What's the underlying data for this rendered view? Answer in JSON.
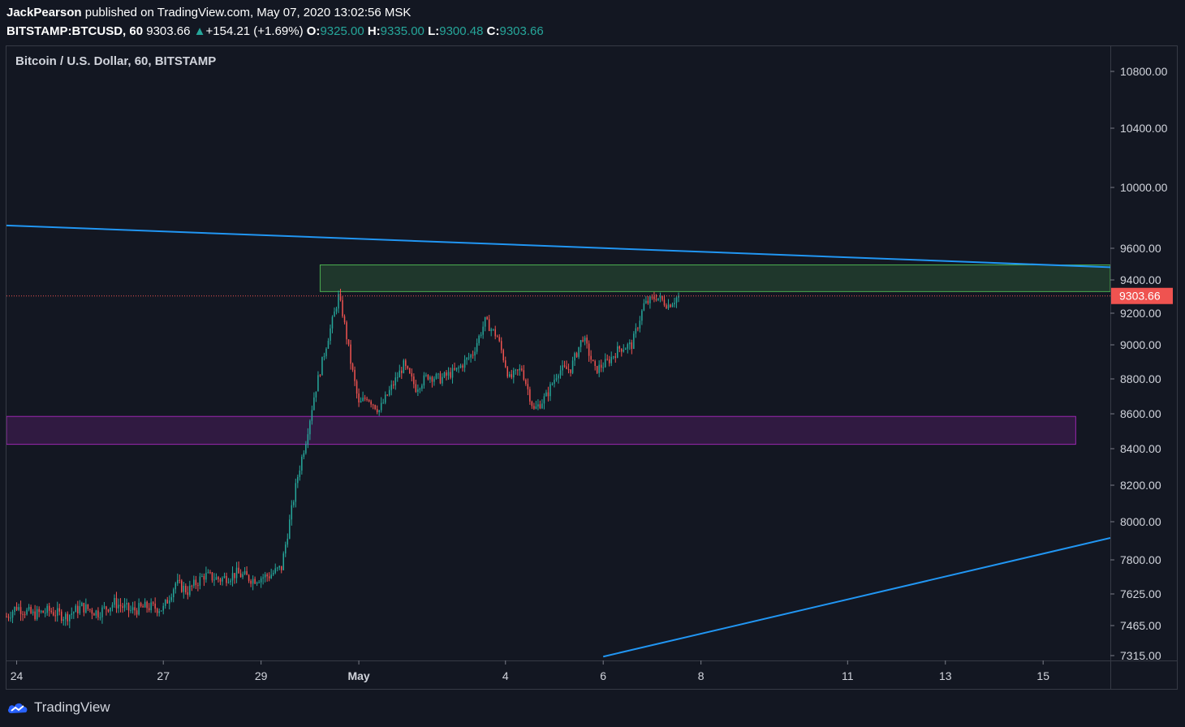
{
  "header": {
    "author": "JackPearson",
    "published": "published on TradingView.com, May 07, 2020 13:02:56 MSK",
    "symbol": "BITSTAMP:BTCUSD, 60",
    "last": "9303.66",
    "arrow": "▲",
    "change": "+154.21 (+1.69%)",
    "o_label": "O:",
    "o_value": "9325.00",
    "h_label": "H:",
    "h_value": "9335.00",
    "l_label": "L:",
    "l_value": "9300.48",
    "c_label": "C:",
    "c_value": "9303.66"
  },
  "chart_title": "Bitcoin / U.S. Dollar, 60, BITSTAMP",
  "footer": {
    "brand": "TradingView"
  },
  "colors": {
    "up": "#26a69a",
    "down": "#ef5350",
    "trendline": "#2196f3",
    "resistance_zone": "#4caf50",
    "support_zone": "#9c27b0",
    "price_label": "#ef5350"
  },
  "chart_data": {
    "type": "candlestick",
    "title": "Bitcoin / U.S. Dollar, 60, BITSTAMP",
    "y_ticks": [
      10800,
      10400,
      10000,
      9600,
      9400,
      9200,
      9000,
      8800,
      8600,
      8400,
      8200,
      8000,
      7800,
      7625,
      7465,
      7315
    ],
    "y_tick_labels": [
      "10800.00",
      "10400.00",
      "10000.00",
      "9600.00",
      "9400.00",
      "9200.00",
      "9000.00",
      "8800.00",
      "8600.00",
      "8400.00",
      "8200.00",
      "8000.00",
      "7800.00",
      "7625.00",
      "7465.00",
      "7315.00"
    ],
    "y_range": [
      7315,
      10950
    ],
    "x_range_days": [
      "2020-04-23T19:00",
      "2020-05-16T09:00"
    ],
    "x_ticks": [
      {
        "label": "24",
        "date": "2020-04-24"
      },
      {
        "label": "27",
        "date": "2020-04-27"
      },
      {
        "label": "29",
        "date": "2020-04-29"
      },
      {
        "label": "May",
        "date": "2020-05-01"
      },
      {
        "label": "4",
        "date": "2020-05-04"
      },
      {
        "label": "6",
        "date": "2020-05-06"
      },
      {
        "label": "8",
        "date": "2020-05-08"
      },
      {
        "label": "11",
        "date": "2020-05-11"
      },
      {
        "label": "13",
        "date": "2020-05-13"
      },
      {
        "label": "15",
        "date": "2020-05-15"
      }
    ],
    "last_price": 9303.66,
    "last_price_label": "9303.66",
    "zones": [
      {
        "name": "resistance",
        "from": "2020-04-30T05:00",
        "to": "2020-05-16T09:00",
        "low": 9330,
        "high": 9495
      },
      {
        "name": "support",
        "from": "2020-04-23T19:00",
        "to": "2020-05-15T16:00",
        "low": 8425,
        "high": 8585
      }
    ],
    "trendlines": [
      {
        "name": "descending",
        "from": {
          "date": "2020-04-23T19:00",
          "price": 9750
        },
        "to": {
          "date": "2020-05-16T09:00",
          "price": 9480
        }
      },
      {
        "name": "ascending",
        "from": {
          "date": "2020-05-06T00:00",
          "price": 7310
        },
        "to": {
          "date": "2020-05-16T09:00",
          "price": 7915
        }
      }
    ],
    "series_close": [
      [
        "2020-04-23T19:00",
        7510
      ],
      [
        "2020-04-24T00:00",
        7560
      ],
      [
        "2020-04-24T08:00",
        7520
      ],
      [
        "2020-04-24T16:00",
        7540
      ],
      [
        "2020-04-25T00:00",
        7510
      ],
      [
        "2020-04-25T08:00",
        7560
      ],
      [
        "2020-04-25T16:00",
        7530
      ],
      [
        "2020-04-26T00:00",
        7580
      ],
      [
        "2020-04-26T08:00",
        7540
      ],
      [
        "2020-04-26T16:00",
        7560
      ],
      [
        "2020-04-27T00:00",
        7550
      ],
      [
        "2020-04-27T06:00",
        7680
      ],
      [
        "2020-04-27T12:00",
        7640
      ],
      [
        "2020-04-27T20:00",
        7720
      ],
      [
        "2020-04-28T04:00",
        7700
      ],
      [
        "2020-04-28T12:00",
        7730
      ],
      [
        "2020-04-28T20:00",
        7700
      ],
      [
        "2020-04-29T04:00",
        7720
      ],
      [
        "2020-04-29T10:00",
        7760
      ],
      [
        "2020-04-29T14:00",
        8000
      ],
      [
        "2020-04-29T18:00",
        8250
      ],
      [
        "2020-04-29T22:00",
        8450
      ],
      [
        "2020-04-30T02:00",
        8700
      ],
      [
        "2020-04-30T06:00",
        8900
      ],
      [
        "2020-04-30T10:00",
        9100
      ],
      [
        "2020-04-30T14:00",
        9300
      ],
      [
        "2020-04-30T16:00",
        9200
      ],
      [
        "2020-04-30T20:00",
        8900
      ],
      [
        "2020-05-01T00:00",
        8650
      ],
      [
        "2020-05-01T04:00",
        8700
      ],
      [
        "2020-05-01T10:00",
        8620
      ],
      [
        "2020-05-01T16:00",
        8750
      ],
      [
        "2020-05-01T22:00",
        8880
      ],
      [
        "2020-05-02T04:00",
        8750
      ],
      [
        "2020-05-02T10:00",
        8820
      ],
      [
        "2020-05-02T16:00",
        8800
      ],
      [
        "2020-05-03T00:00",
        8850
      ],
      [
        "2020-05-03T08:00",
        8950
      ],
      [
        "2020-05-03T14:00",
        9150
      ],
      [
        "2020-05-03T20:00",
        9050
      ],
      [
        "2020-05-04T02:00",
        8800
      ],
      [
        "2020-05-04T08:00",
        8860
      ],
      [
        "2020-05-04T14:00",
        8620
      ],
      [
        "2020-05-04T20:00",
        8700
      ],
      [
        "2020-05-05T02:00",
        8850
      ],
      [
        "2020-05-05T08:00",
        8860
      ],
      [
        "2020-05-05T14:00",
        9050
      ],
      [
        "2020-05-05T20:00",
        8850
      ],
      [
        "2020-05-06T02:00",
        8900
      ],
      [
        "2020-05-06T08:00",
        8980
      ],
      [
        "2020-05-06T14:00",
        9000
      ],
      [
        "2020-05-06T20:00",
        9250
      ],
      [
        "2020-05-07T02:00",
        9300
      ],
      [
        "2020-05-07T08:00",
        9250
      ],
      [
        "2020-05-07T13:00",
        9303.66
      ]
    ]
  }
}
